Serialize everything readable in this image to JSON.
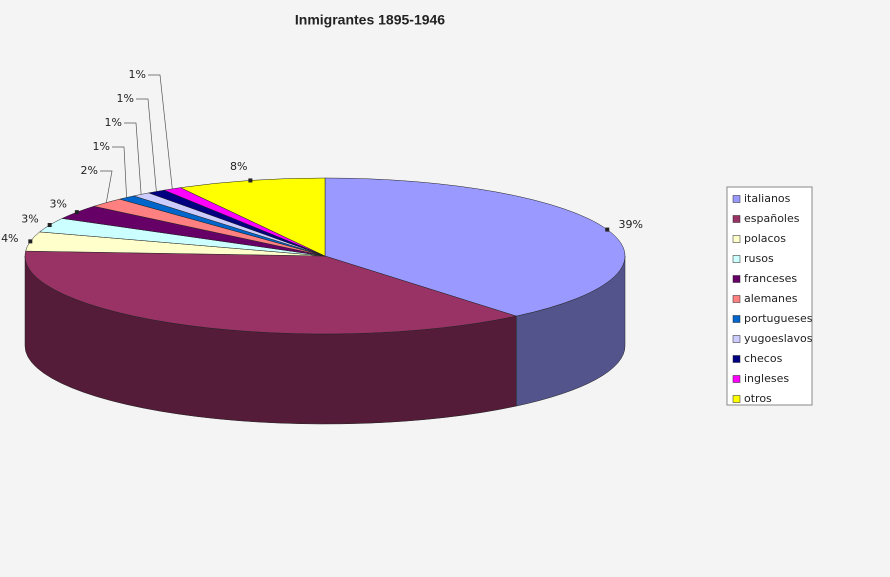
{
  "chart_data": {
    "type": "pie3d",
    "title": "Inmigrantes 1895-1946",
    "categories": [
      "italianos",
      "españoles",
      "polacos",
      "rusos",
      "franceses",
      "alemanes",
      "portugueses",
      "yugoeslavos",
      "checos",
      "ingleses",
      "otros"
    ],
    "values": [
      39,
      37,
      4,
      3,
      3,
      2,
      1,
      1,
      1,
      1,
      8
    ],
    "value_labels": [
      "39%",
      null,
      "4%",
      "3%",
      "3%",
      "2%",
      "1%",
      "1%",
      "1%",
      "1%",
      "8%"
    ],
    "colors": [
      "#9999ff",
      "#993366",
      "#ffffcc",
      "#ccffff",
      "#660066",
      "#ff8080",
      "#0066cc",
      "#ccccff",
      "#000080",
      "#ff00ff",
      "#ffff00"
    ],
    "legend": "right"
  }
}
